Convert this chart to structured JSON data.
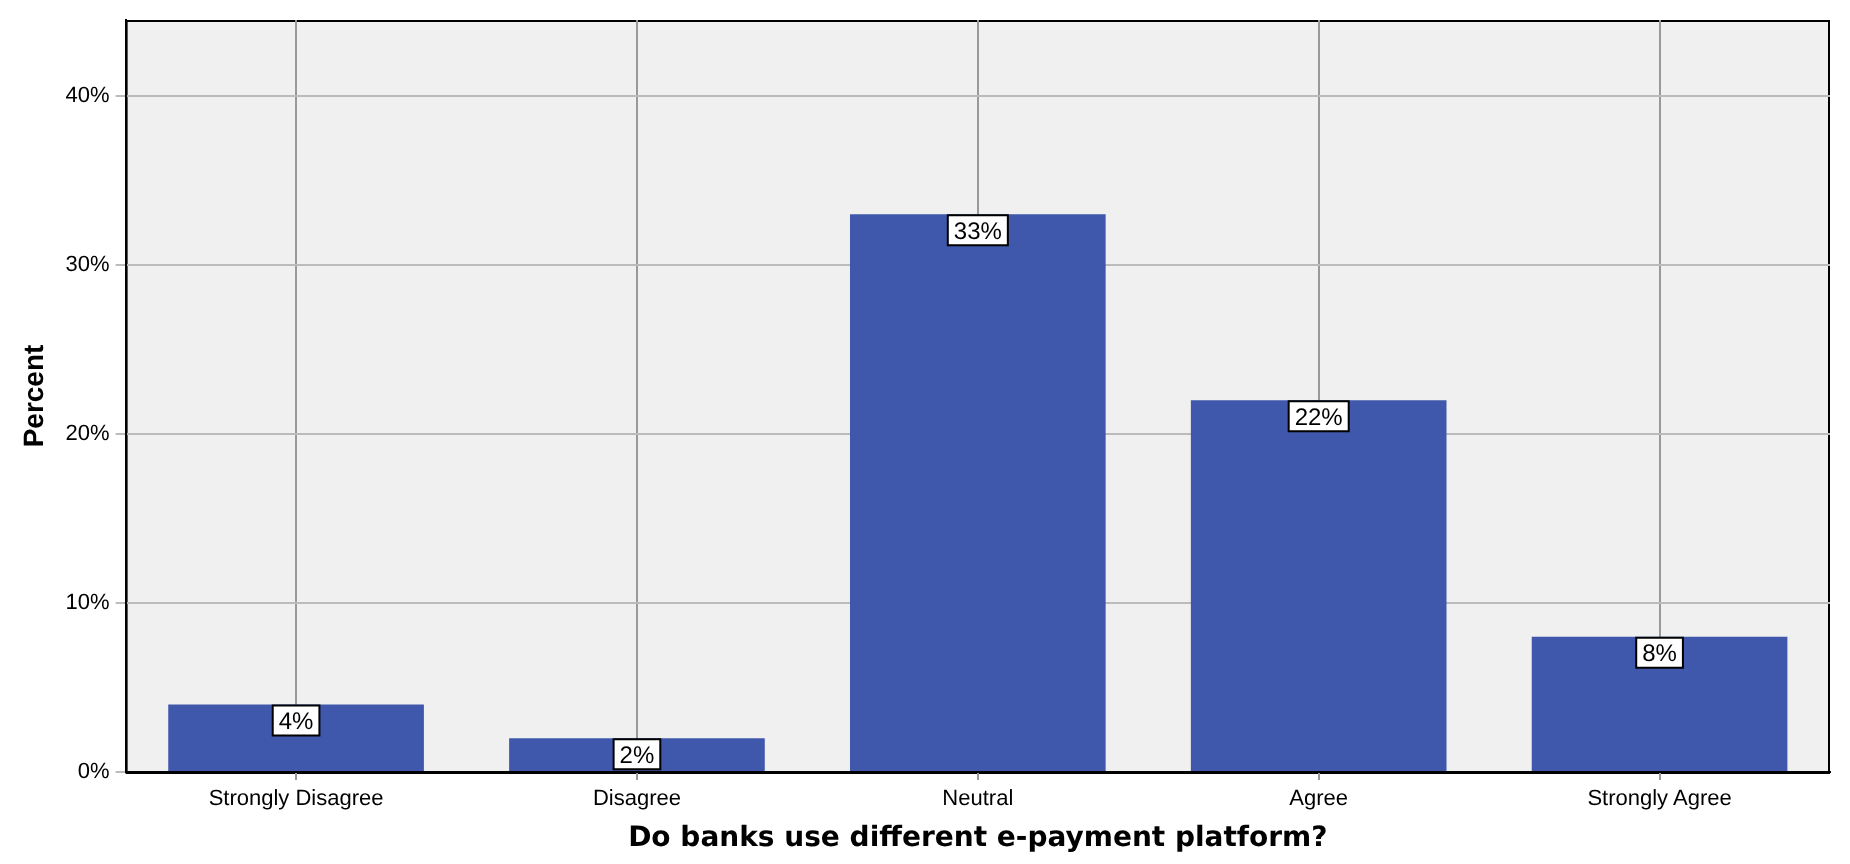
{
  "chart_data": {
    "type": "bar",
    "xlabel": "Do banks use different e-payment platform?",
    "ylabel": "Percent",
    "categories": [
      "Strongly Disagree",
      "Disagree",
      "Neutral",
      "Agree",
      "Strongly Agree"
    ],
    "values": [
      4,
      2,
      33,
      22,
      8
    ],
    "value_labels": [
      "4%",
      "2%",
      "33%",
      "22%",
      "8%"
    ],
    "color": "#3f58ab",
    "ylim": [
      0,
      44.5
    ],
    "yticks": [
      {
        "value": 0,
        "label": "0%"
      },
      {
        "value": 10,
        "label": "10%"
      },
      {
        "value": 20,
        "label": "20%"
      },
      {
        "value": 30,
        "label": "30%"
      },
      {
        "value": 40,
        "label": "40%"
      }
    ],
    "grid": true,
    "legend": false
  }
}
